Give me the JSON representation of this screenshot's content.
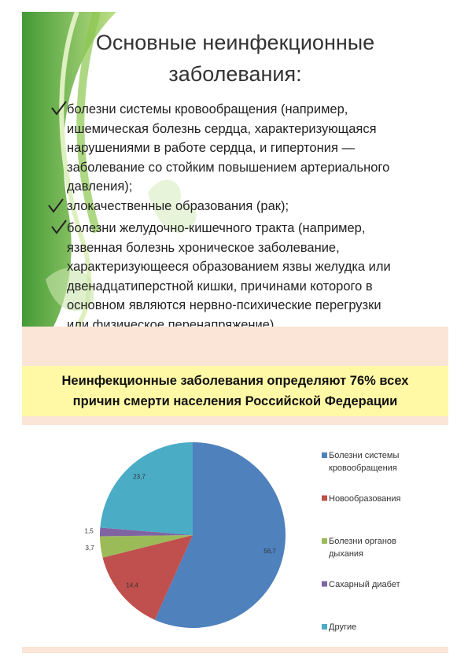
{
  "slide": {
    "title": [
      "Основные неинфекционные",
      "заболевания:"
    ],
    "bullets": [
      [
        "болезни системы кровообращения (например,",
        "ишемическая болезнь сердца, характеризующаяся",
        "нарушениями в работе сердца, и гипертония —",
        "заболевание со стойким повышением артериального",
        "давления);"
      ],
      [
        "злокачественные образования (рак);"
      ],
      [
        "болезни желудочно-кишечного тракта (например,",
        "язвенная болезнь хроническое заболевание,",
        "характеризующееся образованием язвы желудка или",
        "двенадцатиперстной кишки, причинами которого в",
        "основном являются нервно-психические перегрузки",
        "или физическое перенапряжение)."
      ]
    ]
  },
  "chart_data": {
    "type": "pie",
    "title": "Неинфекционные заболевания определяют 76% всех причин смерти населения Российской Федерации",
    "categories": [
      "Болезни системы кровообращения",
      "Новообразования",
      "Болезни органов дыхания",
      "Сахарный диабет",
      "Другие"
    ],
    "values": [
      56.7,
      14.4,
      3.7,
      1.5,
      23.7
    ],
    "value_labels": [
      "56,7",
      "14,4",
      "3,7",
      "1,5",
      "23,7"
    ],
    "colors": [
      "#4f81bd",
      "#c0504d",
      "#9bbb59",
      "#8064a2",
      "#4bacc6"
    ]
  }
}
